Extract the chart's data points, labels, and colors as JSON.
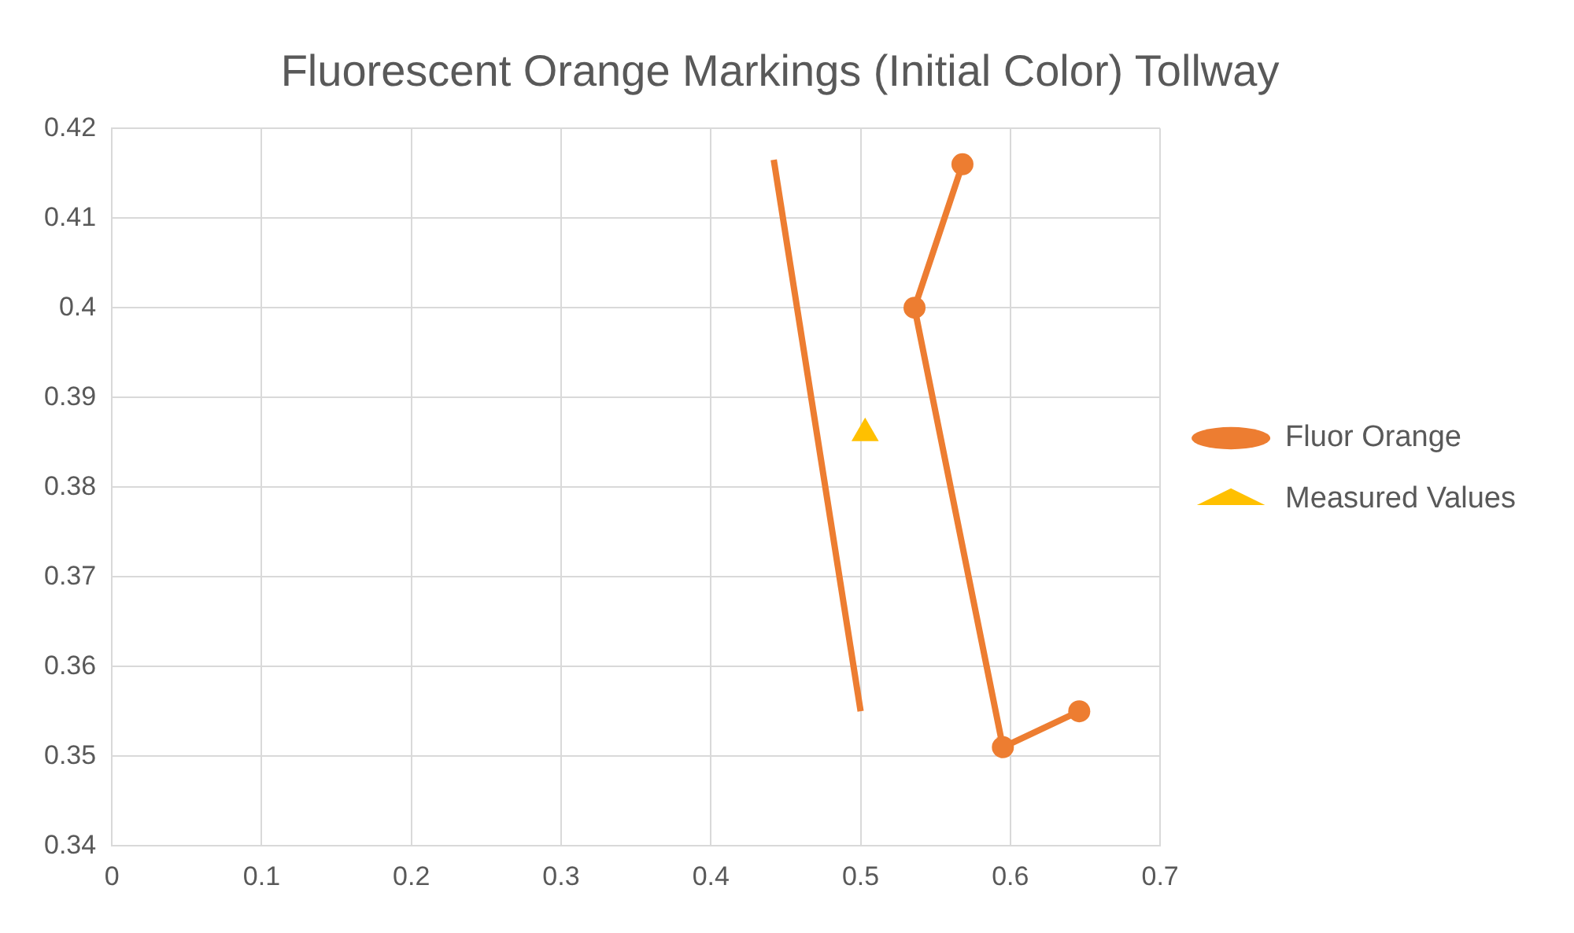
{
  "chart_data": {
    "type": "scatter",
    "title": "Fluorescent Orange Markings (Initial Color) Tollway",
    "xlim": [
      0,
      0.7
    ],
    "xticks": [
      0,
      0.1,
      0.2,
      0.3,
      0.4,
      0.5,
      0.6,
      0.7
    ],
    "ylim": [
      0.34,
      0.42
    ],
    "yticks": [
      0.34,
      0.35,
      0.36,
      0.37,
      0.38,
      0.39,
      0.4,
      0.41,
      0.42
    ],
    "grid": true,
    "legend": "right",
    "series": [
      {
        "name": "Fluor Orange",
        "type": "line",
        "marker": "circle",
        "color": "#ed7d31",
        "x": [
          0.568,
          0.536,
          0.595,
          0.646
        ],
        "values": [
          0.416,
          0.4,
          0.351,
          0.355
        ]
      },
      {
        "name": "Measured Values",
        "type": "scatter",
        "marker": "triangle",
        "color": "#ffc000",
        "x": [
          0.503
        ],
        "values": [
          0.386
        ]
      },
      {
        "type": "line",
        "marker": "none",
        "color": "#ed7d31",
        "x": [
          0.442,
          0.5
        ],
        "values": [
          0.4165,
          0.355
        ]
      }
    ]
  }
}
